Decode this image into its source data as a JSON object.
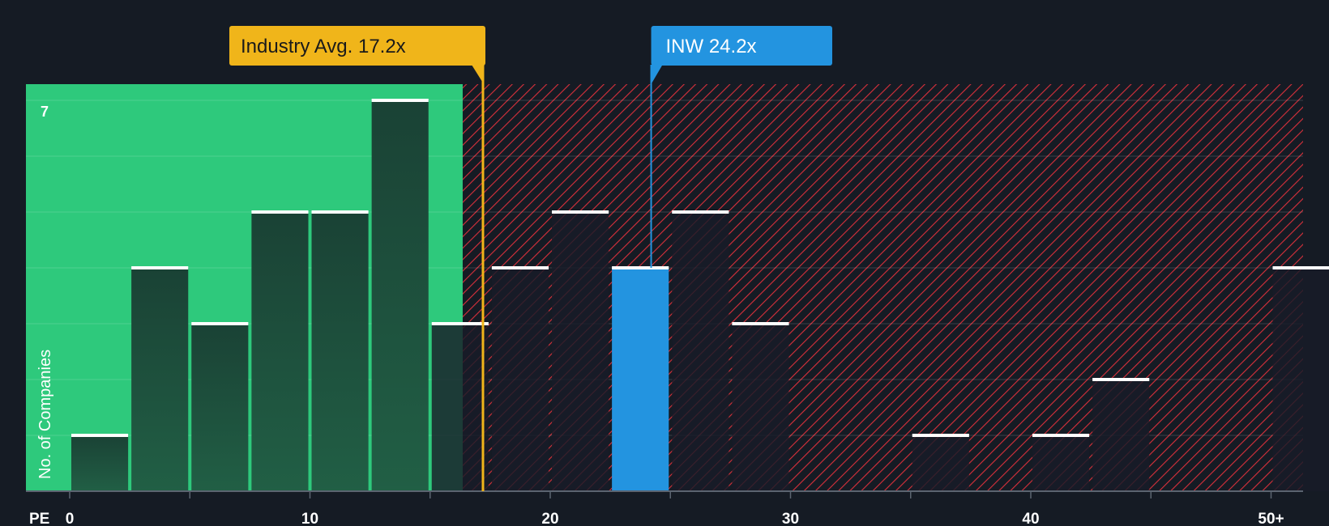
{
  "chart_data": {
    "type": "bar",
    "title": "",
    "xlabel": "PE",
    "ylabel": "No. of Companies",
    "x_ticks": [
      "0",
      "10",
      "20",
      "30",
      "40",
      "50+"
    ],
    "y_tick_labels": [
      "7"
    ],
    "ylim": [
      0,
      7
    ],
    "bin_width": 2.5,
    "bin_starts": [
      0,
      2.5,
      5,
      7.5,
      10,
      12.5,
      15,
      17.5,
      20,
      22.5,
      25,
      27.5,
      30,
      32.5,
      35,
      37.5,
      40,
      42.5,
      45,
      47.5,
      50
    ],
    "values": [
      1,
      4,
      3,
      5,
      5,
      7,
      3,
      4,
      5,
      4,
      5,
      3,
      0,
      0,
      1,
      0,
      1,
      2,
      0,
      0,
      4
    ],
    "industry_avg": {
      "value": 17.2,
      "label": "Industry Avg. 17.2x"
    },
    "company": {
      "value": 24.2,
      "label": "INW 24.2x",
      "bin_index": 9
    },
    "colors": {
      "background": "#151b24",
      "fair_zone": "#2ec97c",
      "expensive_zone": "#e0303c",
      "company": "#2394e0",
      "industry_avg": "#f0b51a"
    }
  }
}
